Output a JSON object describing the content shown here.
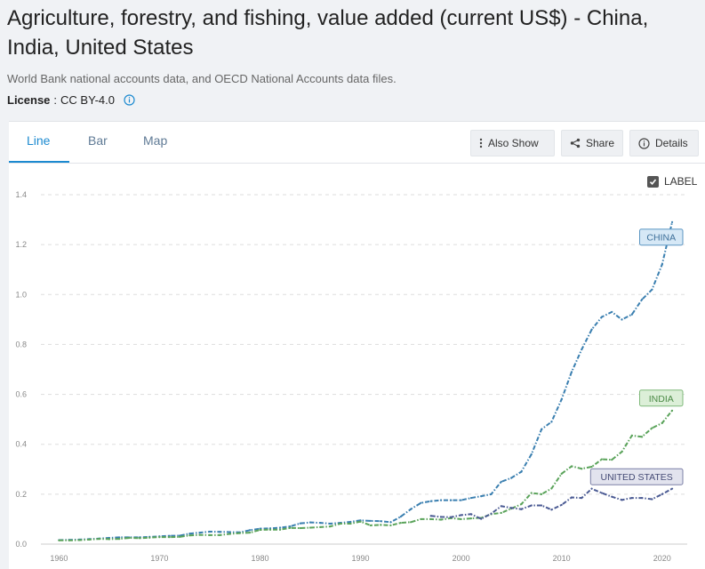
{
  "header": {
    "title": "Agriculture, forestry, and fishing, value added (current US$) - China, India, United States",
    "source": "World Bank national accounts data, and OECD National Accounts data files.",
    "license_label": "License",
    "license_sep": " : ",
    "license_value": "CC BY-4.0"
  },
  "tabs": [
    {
      "label": "Line",
      "active": true
    },
    {
      "label": "Bar",
      "active": false
    },
    {
      "label": "Map",
      "active": false
    }
  ],
  "toolbar": {
    "also_show": "Also Show",
    "share": "Share",
    "details": "Details"
  },
  "label_toggle": {
    "label": "LABEL",
    "checked": true
  },
  "colors": {
    "china": "#3a7fb0",
    "india": "#5aa35a",
    "united_states": "#4a5a93",
    "grid": "#dddddd",
    "accent": "#1c8ad0"
  },
  "chart_data": {
    "type": "line",
    "title": "Agriculture, forestry, and fishing, value added (current US$) - China, India, United States",
    "xlabel": "",
    "ylabel": "",
    "xlim": [
      1960,
      2021
    ],
    "ylim": [
      0,
      1.4
    ],
    "x_ticks": [
      1960,
      1970,
      1980,
      1990,
      2000,
      2010,
      2020
    ],
    "y_ticks": [
      "0.0",
      "0.2",
      "0.4",
      "0.6",
      "0.8",
      "1.0",
      "1.2",
      "1.4"
    ],
    "legend_position": "line-end labels",
    "series": [
      {
        "name": "CHINA",
        "color": "#3a7fb0",
        "x": [
          1960,
          1961,
          1962,
          1963,
          1964,
          1965,
          1966,
          1967,
          1968,
          1969,
          1970,
          1971,
          1972,
          1973,
          1974,
          1975,
          1976,
          1977,
          1978,
          1979,
          1980,
          1981,
          1982,
          1983,
          1984,
          1985,
          1986,
          1987,
          1988,
          1989,
          1990,
          1991,
          1992,
          1993,
          1994,
          1995,
          1996,
          1997,
          1998,
          1999,
          2000,
          2001,
          2002,
          2003,
          2004,
          2005,
          2006,
          2007,
          2008,
          2009,
          2010,
          2011,
          2012,
          2013,
          2014,
          2015,
          2016,
          2017,
          2018,
          2019,
          2020,
          2021
        ],
        "values": [
          0.016,
          0.017,
          0.018,
          0.02,
          0.022,
          0.025,
          0.027,
          0.027,
          0.027,
          0.029,
          0.031,
          0.033,
          0.034,
          0.042,
          0.046,
          0.05,
          0.049,
          0.048,
          0.047,
          0.056,
          0.062,
          0.063,
          0.066,
          0.071,
          0.083,
          0.087,
          0.085,
          0.082,
          0.085,
          0.089,
          0.095,
          0.093,
          0.092,
          0.088,
          0.11,
          0.14,
          0.165,
          0.172,
          0.176,
          0.176,
          0.176,
          0.185,
          0.192,
          0.2,
          0.25,
          0.265,
          0.29,
          0.36,
          0.46,
          0.49,
          0.58,
          0.69,
          0.78,
          0.86,
          0.91,
          0.93,
          0.9,
          0.92,
          0.98,
          1.02,
          1.12,
          1.29
        ]
      },
      {
        "name": "INDIA",
        "color": "#5aa35a",
        "x": [
          1960,
          1961,
          1962,
          1963,
          1964,
          1965,
          1966,
          1967,
          1968,
          1969,
          1970,
          1971,
          1972,
          1973,
          1974,
          1975,
          1976,
          1977,
          1978,
          1979,
          1980,
          1981,
          1982,
          1983,
          1984,
          1985,
          1986,
          1987,
          1988,
          1989,
          1990,
          1991,
          1992,
          1993,
          1994,
          1995,
          1996,
          1997,
          1998,
          1999,
          2000,
          2001,
          2002,
          2003,
          2004,
          2005,
          2006,
          2007,
          2008,
          2009,
          2010,
          2011,
          2012,
          2013,
          2014,
          2015,
          2016,
          2017,
          2018,
          2019,
          2020,
          2021
        ],
        "values": [
          0.015,
          0.015,
          0.016,
          0.018,
          0.021,
          0.02,
          0.021,
          0.025,
          0.024,
          0.026,
          0.028,
          0.028,
          0.029,
          0.035,
          0.037,
          0.036,
          0.036,
          0.041,
          0.044,
          0.046,
          0.057,
          0.058,
          0.058,
          0.065,
          0.064,
          0.066,
          0.068,
          0.071,
          0.082,
          0.082,
          0.09,
          0.075,
          0.077,
          0.075,
          0.085,
          0.088,
          0.1,
          0.1,
          0.098,
          0.104,
          0.1,
          0.103,
          0.105,
          0.12,
          0.125,
          0.142,
          0.16,
          0.205,
          0.2,
          0.223,
          0.282,
          0.312,
          0.302,
          0.31,
          0.34,
          0.338,
          0.37,
          0.435,
          0.43,
          0.465,
          0.485,
          0.535
        ]
      },
      {
        "name": "UNITED STATES",
        "color": "#4a5a93",
        "x": [
          1997,
          1998,
          1999,
          2000,
          2001,
          2002,
          2003,
          2004,
          2005,
          2006,
          2007,
          2008,
          2009,
          2010,
          2011,
          2012,
          2013,
          2014,
          2015,
          2016,
          2017,
          2018,
          2019,
          2020,
          2021
        ],
        "values": [
          0.113,
          0.109,
          0.108,
          0.116,
          0.12,
          0.101,
          0.122,
          0.152,
          0.145,
          0.14,
          0.155,
          0.155,
          0.138,
          0.157,
          0.187,
          0.185,
          0.222,
          0.205,
          0.19,
          0.177,
          0.185,
          0.185,
          0.18,
          0.2,
          0.222
        ]
      }
    ],
    "line_labels": [
      {
        "series": "CHINA",
        "text": "CHINA"
      },
      {
        "series": "INDIA",
        "text": "INDIA"
      },
      {
        "series": "UNITED STATES",
        "text": "UNITED STATES"
      }
    ]
  }
}
